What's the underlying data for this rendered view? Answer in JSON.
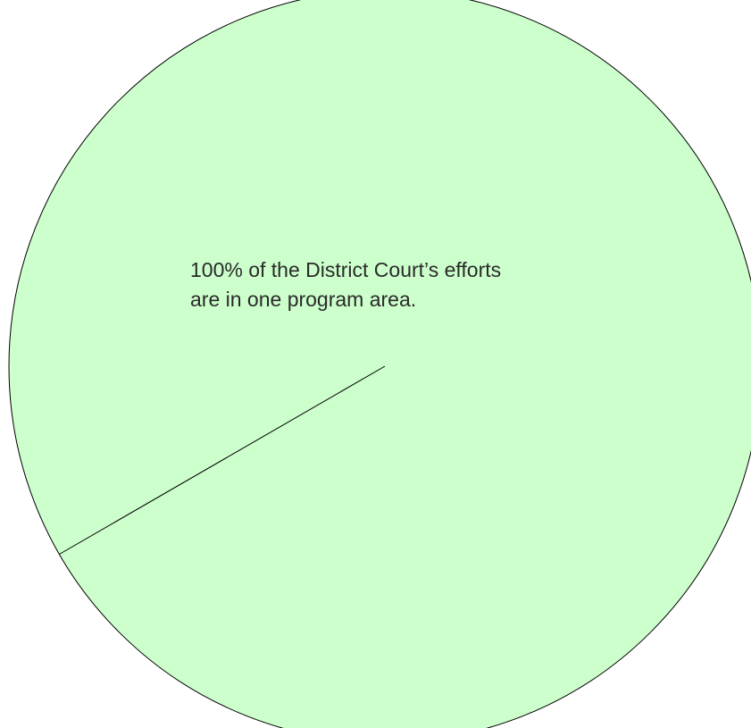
{
  "chart_data": {
    "type": "pie",
    "categories": [
      ""
    ],
    "values": [
      100
    ],
    "colors": [
      "#ccffcc"
    ],
    "start_angle_deg": 210,
    "annotation": {
      "line1": "100% of the District Court’s efforts",
      "line2": "are in one program area."
    }
  }
}
